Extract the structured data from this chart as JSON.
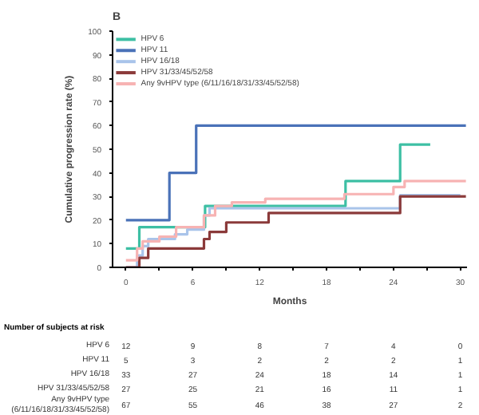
{
  "chart_data": {
    "type": "step",
    "title": "B",
    "xlabel": "Months",
    "ylabel": "Cumulative progression rate (%)",
    "xlim": [
      -1.2,
      30.6
    ],
    "ylim": [
      0,
      100
    ],
    "xticks": [
      0,
      {
        "value": 3,
        "label": null
      },
      6,
      {
        "value": 9,
        "label": null
      },
      12,
      {
        "value": 15,
        "label": null
      },
      18,
      {
        "value": 21,
        "label": null
      },
      24,
      {
        "value": 27,
        "label": null
      },
      30
    ],
    "yticks": [
      0,
      10,
      20,
      30,
      40,
      50,
      60,
      70,
      80,
      90,
      100
    ],
    "grid": false,
    "legend": "top left",
    "marker": "none",
    "line_style": "solid",
    "series": [
      {
        "name": "HPV 6",
        "color": "#3dbfa4",
        "x": [
          0,
          1.2,
          7.1,
          19.7,
          24.6,
          27.3
        ],
        "values": [
          8,
          17,
          26,
          36.5,
          52,
          52
        ]
      },
      {
        "name": "HPV 11",
        "color": "#4a72b8",
        "x": [
          0,
          3.9,
          6.3,
          30.5
        ],
        "values": [
          20,
          40,
          60,
          60
        ]
      },
      {
        "name": "HPV 16/18",
        "color": "#a9c4ea",
        "x": [
          0,
          1,
          1.5,
          2,
          4.4,
          5.5,
          7,
          7.5,
          24.6,
          30
        ],
        "values": [
          0,
          5,
          9,
          12,
          14,
          16,
          22,
          25,
          30.5,
          30.5
        ]
      },
      {
        "name": "HPV 31/33/45/52/58",
        "color": "#8b3a3a",
        "x": [
          0,
          1.2,
          2,
          7,
          7.5,
          9,
          12.8,
          24.6,
          30.5
        ],
        "values": [
          0,
          4,
          8,
          12,
          15,
          19,
          23,
          30,
          30
        ]
      },
      {
        "name": "Any 9vHPV type (6/11/16/18/31/33/45/52/58)",
        "color": "#f7b3b3",
        "x": [
          0,
          1,
          1.5,
          3,
          4.5,
          7,
          8,
          9.5,
          12.5,
          19.6,
          24,
          25,
          30.5
        ],
        "values": [
          3,
          8,
          11,
          13,
          17,
          22,
          26,
          27.5,
          29,
          31,
          34,
          36.5,
          36.5
        ]
      }
    ],
    "annotations": [
      "Number of subjects at risk",
      "HPV 6",
      "12",
      "9",
      "8",
      "7",
      "4",
      "0",
      "HPV 11",
      "5",
      "3",
      "2",
      "2",
      "2",
      "1",
      "HPV 16/18",
      "33",
      "27",
      "24",
      "18",
      "14",
      "1",
      "HPV 31/33/45/52/58",
      "27",
      "25",
      "21",
      "16",
      "11",
      "1",
      "Any 9vHPV type\n(6/11/16/18/31/33/45/52/58)",
      "67",
      "55",
      "46",
      "38",
      "27",
      "2"
    ]
  }
}
